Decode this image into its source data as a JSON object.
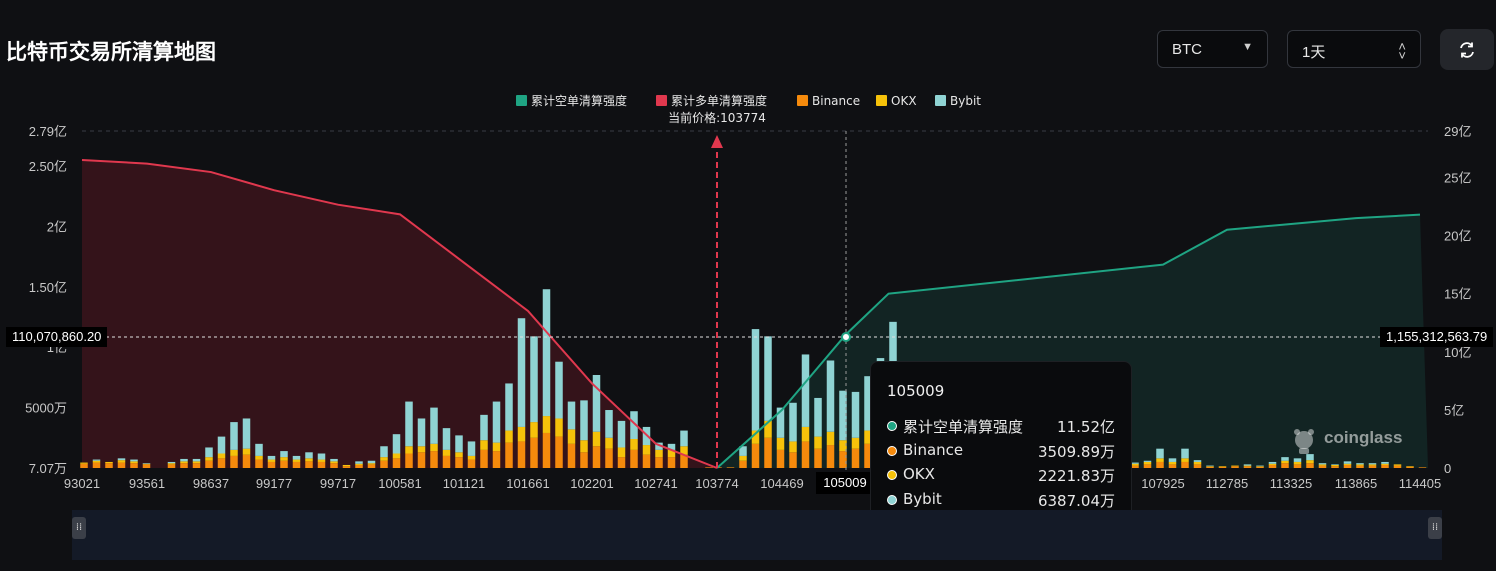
{
  "page": {
    "title": "比特币交易所清算地图"
  },
  "controls": {
    "coin_select": {
      "value": "BTC",
      "icon": "caret-down-icon"
    },
    "range_select": {
      "value": "1天",
      "icon": "updown-chevron-icon"
    },
    "refresh": {
      "icon": "refresh-icon"
    }
  },
  "legend": [
    {
      "label": "累计空单清算强度",
      "color": "#1fa483"
    },
    {
      "label": "累计多单清算强度",
      "color": "#e0384e"
    },
    {
      "label": "Binance",
      "color": "#f58a0c"
    },
    {
      "label": "OKX",
      "color": "#f6c20a"
    },
    {
      "label": "Bybit",
      "color": "#8fd3d3"
    }
  ],
  "current_price_label": "当前价格:103774",
  "crosshair": {
    "left_value": "110,070,860.20",
    "right_value": "1,155,312,563.79",
    "x_value": "105009"
  },
  "tooltip": {
    "title": "105009",
    "rows": [
      {
        "name": "累计空单清算强度",
        "value": "11.52亿",
        "color": "#1fa483"
      },
      {
        "name": "Binance",
        "value": "3509.89万",
        "color": "#f58a0c"
      },
      {
        "name": "OKX",
        "value": "2221.83万",
        "color": "#f6c20a"
      },
      {
        "name": "Bybit",
        "value": "6387.04万",
        "color": "#8fd3d3"
      }
    ]
  },
  "watermark": "coinglass",
  "chart_data": {
    "type": "bar",
    "x_ticks": [
      "93021",
      "93561",
      "98637",
      "99177",
      "99717",
      "100581",
      "101121",
      "101661",
      "102201",
      "102741",
      "103774",
      "104469",
      "105009",
      "107925",
      "112785",
      "113325",
      "113865",
      "114405"
    ],
    "left_axis_ticks": [
      "2.79亿",
      "2.50亿",
      "2亿",
      "1.50亿",
      "1亿",
      "5000万",
      "7.07万"
    ],
    "right_axis_ticks": [
      "29亿",
      "25亿",
      "20亿",
      "15亿",
      "10亿",
      "5亿",
      "0"
    ],
    "left_ylim": [
      0,
      279000000
    ],
    "right_ylim": [
      0,
      2900000000
    ],
    "current_price": 103774,
    "bars_left": [
      [
        0.35,
        0.1,
        0.0
      ],
      [
        0.45,
        0.15,
        0.1
      ],
      [
        0.4,
        0.1,
        0.0
      ],
      [
        0.45,
        0.2,
        0.15
      ],
      [
        0.4,
        0.15,
        0.15
      ],
      [
        0.3,
        0.05,
        0.05
      ],
      [
        0.0,
        0.0,
        0.0
      ],
      [
        0.3,
        0.1,
        0.1
      ],
      [
        0.4,
        0.15,
        0.2
      ],
      [
        0.4,
        0.15,
        0.2
      ],
      [
        0.6,
        0.3,
        0.8
      ],
      [
        0.8,
        0.4,
        1.4
      ],
      [
        1.0,
        0.5,
        2.3
      ],
      [
        1.1,
        0.5,
        2.5
      ],
      [
        0.7,
        0.3,
        1.0
      ],
      [
        0.5,
        0.2,
        0.3
      ],
      [
        0.6,
        0.3,
        0.5
      ],
      [
        0.5,
        0.2,
        0.3
      ],
      [
        0.55,
        0.25,
        0.5
      ],
      [
        0.5,
        0.2,
        0.5
      ],
      [
        0.4,
        0.15,
        0.2
      ],
      [
        0.15,
        0.1,
        0.0
      ],
      [
        0.25,
        0.1,
        0.2
      ],
      [
        0.3,
        0.1,
        0.2
      ],
      [
        0.6,
        0.3,
        0.9
      ],
      [
        0.8,
        0.4,
        1.6
      ],
      [
        1.2,
        0.6,
        3.7
      ],
      [
        1.3,
        0.5,
        2.3
      ],
      [
        1.4,
        0.6,
        3.0
      ],
      [
        1.0,
        0.5,
        1.8
      ],
      [
        0.9,
        0.4,
        1.4
      ],
      [
        0.7,
        0.3,
        1.2
      ],
      [
        1.5,
        0.8,
        2.1
      ],
      [
        1.4,
        0.7,
        3.4
      ],
      [
        2.1,
        1.0,
        3.9
      ],
      [
        2.2,
        1.2,
        9.0
      ],
      [
        2.5,
        1.3,
        7.1
      ],
      [
        2.9,
        1.4,
        10.5
      ],
      [
        2.6,
        1.5,
        4.7
      ],
      [
        2.0,
        1.2,
        2.3
      ],
      [
        1.3,
        1.0,
        3.3
      ],
      [
        1.8,
        1.2,
        4.7
      ],
      [
        1.6,
        0.9,
        2.3
      ],
      [
        0.9,
        0.8,
        2.2
      ],
      [
        1.5,
        0.9,
        2.3
      ],
      [
        1.1,
        0.8,
        1.5
      ],
      [
        0.9,
        0.6,
        0.6
      ],
      [
        0.9,
        0.6,
        0.5
      ],
      [
        1.1,
        0.7,
        1.3
      ],
      [
        0.0,
        0.0,
        0.0
      ],
      [
        0.05,
        0.0,
        0.0
      ]
    ],
    "bars_right": [
      [
        0.05,
        0.0,
        0.0
      ],
      [
        0.05,
        0.0,
        0.0
      ],
      [
        0.6,
        0.4,
        0.8
      ],
      [
        2.0,
        1.1,
        8.4
      ],
      [
        2.5,
        1.4,
        7.0
      ],
      [
        1.5,
        1.0,
        2.5
      ],
      [
        1.3,
        0.9,
        3.2
      ],
      [
        2.2,
        1.2,
        6.0
      ],
      [
        1.6,
        1.0,
        3.2
      ],
      [
        1.9,
        1.1,
        5.9
      ],
      [
        1.4,
        0.9,
        4.1
      ],
      [
        1.6,
        0.9,
        3.8
      ],
      [
        2.0,
        1.1,
        4.5
      ],
      [
        2.8,
        1.3,
        5.0
      ],
      [
        3.5,
        2.2,
        6.4
      ],
      [
        2.3,
        1.1,
        3.5
      ],
      [
        1.6,
        0.9,
        1.8
      ],
      [
        1.0,
        0.6,
        1.4
      ],
      [
        0.5,
        0.3,
        0.3
      ],
      [
        0.3,
        0.2,
        0.2
      ]
    ],
    "bars_far_right": [
      [
        0.15,
        0.05,
        0.0
      ],
      [
        0.2,
        0.1,
        0.15
      ],
      [
        0.2,
        0.1,
        0.0
      ],
      [
        0.3,
        0.15,
        0.25
      ],
      [
        0.2,
        0.15,
        0.1
      ],
      [
        0.3,
        0.2,
        0.1
      ],
      [
        0.5,
        0.3,
        0.8
      ],
      [
        0.3,
        0.2,
        0.3
      ],
      [
        0.5,
        0.3,
        0.8
      ],
      [
        0.3,
        0.2,
        0.15
      ],
      [
        0.1,
        0.05,
        0.05
      ],
      [
        0.1,
        0.05,
        0.0
      ],
      [
        0.15,
        0.05,
        0.0
      ],
      [
        0.15,
        0.05,
        0.1
      ],
      [
        0.1,
        0.05,
        0.05
      ],
      [
        0.25,
        0.1,
        0.15
      ],
      [
        0.4,
        0.2,
        0.3
      ],
      [
        0.3,
        0.2,
        0.3
      ],
      [
        0.4,
        0.25,
        0.5
      ],
      [
        0.2,
        0.1,
        0.1
      ],
      [
        0.15,
        0.1,
        0.05
      ],
      [
        0.25,
        0.1,
        0.2
      ],
      [
        0.2,
        0.1,
        0.1
      ],
      [
        0.2,
        0.1,
        0.1
      ],
      [
        0.25,
        0.1,
        0.15
      ],
      [
        0.2,
        0.1,
        0.0
      ],
      [
        0.1,
        0.05,
        0.0
      ],
      [
        0.05,
        0.0,
        0.0
      ]
    ],
    "bars_unit": "千万",
    "long_curve": [
      [
        93021,
        2.55
      ],
      [
        93561,
        2.52
      ],
      [
        98637,
        2.45
      ],
      [
        99177,
        2.3
      ],
      [
        99717,
        2.18
      ],
      [
        100581,
        2.1
      ],
      [
        101121,
        1.7
      ],
      [
        101661,
        1.3
      ],
      [
        102201,
        0.7
      ],
      [
        102741,
        0.2
      ],
      [
        103774,
        0.0
      ]
    ],
    "short_curve": [
      [
        103774,
        0.0
      ],
      [
        104469,
        5.0
      ],
      [
        105009,
        11.5
      ],
      [
        105400,
        15.0
      ],
      [
        107925,
        17.5
      ],
      [
        112785,
        20.5
      ],
      [
        113325,
        21.0
      ],
      [
        113865,
        21.5
      ],
      [
        114405,
        21.8
      ]
    ]
  }
}
